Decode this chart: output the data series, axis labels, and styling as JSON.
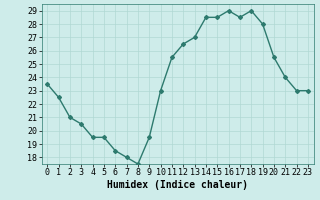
{
  "x": [
    0,
    1,
    2,
    3,
    4,
    5,
    6,
    7,
    8,
    9,
    10,
    11,
    12,
    13,
    14,
    15,
    16,
    17,
    18,
    19,
    20,
    21,
    22,
    23
  ],
  "y": [
    23.5,
    22.5,
    21.0,
    20.5,
    19.5,
    19.5,
    18.5,
    18.0,
    17.5,
    19.5,
    23.0,
    25.5,
    26.5,
    27.0,
    28.5,
    28.5,
    29.0,
    28.5,
    29.0,
    28.0,
    25.5,
    24.0,
    23.0,
    23.0
  ],
  "line_color": "#2d7a6e",
  "marker": "D",
  "marker_size": 2,
  "bg_color": "#ceecea",
  "grid_color": "#b0d8d4",
  "xlabel": "Humidex (Indice chaleur)",
  "xlim": [
    -0.5,
    23.5
  ],
  "ylim": [
    17.5,
    29.5
  ],
  "yticks": [
    18,
    19,
    20,
    21,
    22,
    23,
    24,
    25,
    26,
    27,
    28,
    29
  ],
  "xticks": [
    0,
    1,
    2,
    3,
    4,
    5,
    6,
    7,
    8,
    9,
    10,
    11,
    12,
    13,
    14,
    15,
    16,
    17,
    18,
    19,
    20,
    21,
    22,
    23
  ],
  "xlabel_fontsize": 7,
  "tick_fontsize": 6,
  "linewidth": 1.0
}
